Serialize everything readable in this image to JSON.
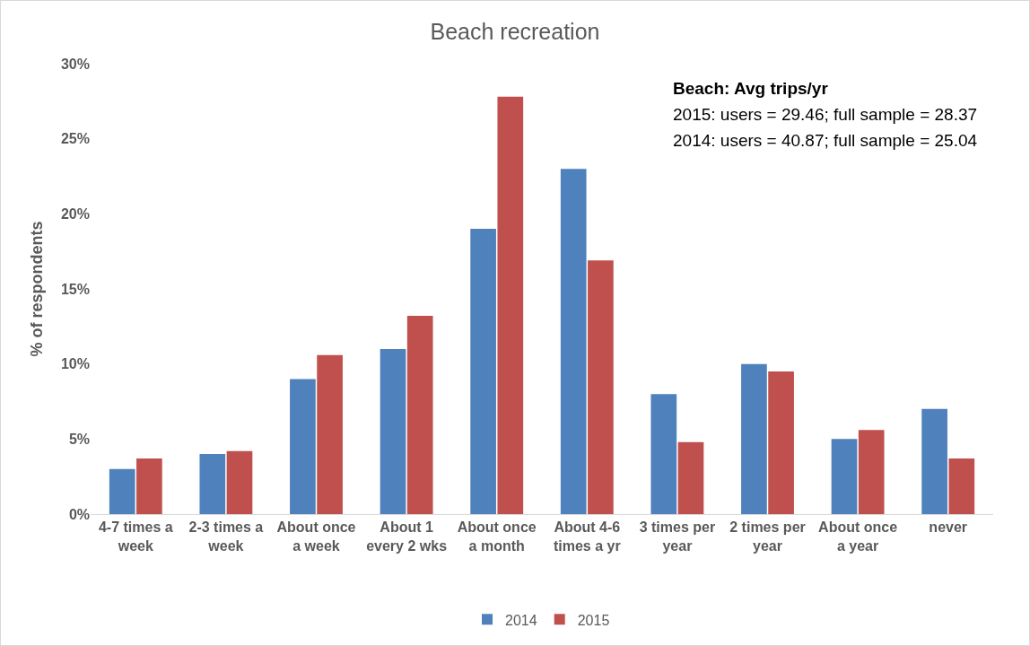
{
  "chart_data": {
    "type": "bar",
    "title": "Beach recreation",
    "ylabel": "% of respondents",
    "categories": [
      "4-7 times a week",
      "2-3 times a week",
      "About once a week",
      "About 1 every 2 wks",
      "About once a month",
      "About 4-6 times a yr",
      "3 times per year",
      "2 times per year",
      "About once a year",
      "never"
    ],
    "series": [
      {
        "name": "2014",
        "color": "#4f81bd",
        "values": [
          3,
          4,
          9,
          11,
          19,
          23,
          8,
          10,
          5,
          7
        ]
      },
      {
        "name": "2015",
        "color": "#c0504d",
        "values": [
          3.7,
          4.2,
          10.6,
          13.2,
          27.8,
          16.9,
          4.8,
          9.5,
          5.6,
          3.7
        ]
      }
    ],
    "ylim": [
      0,
      30
    ],
    "yticks": [
      {
        "value": 0,
        "label": "0%"
      },
      {
        "value": 5,
        "label": "5%"
      },
      {
        "value": 10,
        "label": "10%"
      },
      {
        "value": 15,
        "label": "15%"
      },
      {
        "value": 20,
        "label": "20%"
      },
      {
        "value": 25,
        "label": "25%"
      },
      {
        "value": 30,
        "label": "30%"
      }
    ],
    "grid": false,
    "legend": "bottom",
    "annotations": [
      "Beach: Avg trips/yr",
      "2015: users = 29.46; full sample = 28.37",
      "2014: users = 40.87; full sample = 25.04"
    ]
  }
}
